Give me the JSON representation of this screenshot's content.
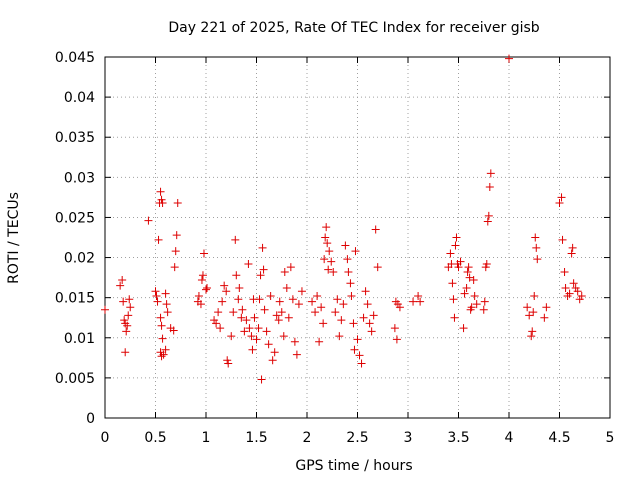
{
  "chart_data": {
    "type": "scatter",
    "title": "Day 221 of 2025, Rate Of TEC Index for receiver gisb",
    "xlabel": "GPS time / hours",
    "ylabel": "ROTI / TECUs",
    "xlim": [
      0,
      5
    ],
    "ylim": [
      0,
      0.045
    ],
    "x_ticks": [
      "0",
      "0.5",
      "1",
      "1.5",
      "2",
      "2.5",
      "3",
      "3.5",
      "4",
      "4.5",
      "5"
    ],
    "y_ticks": [
      "0",
      "0.005",
      "0.01",
      "0.015",
      "0.02",
      "0.025",
      "0.03",
      "0.035",
      "0.04",
      "0.045"
    ],
    "grid": true,
    "legend": "none",
    "marker": "plus",
    "color": "#dd0000",
    "series": [
      {
        "points": [
          [
            0.0,
            0.0135
          ],
          [
            0.15,
            0.0165
          ],
          [
            0.17,
            0.0172
          ],
          [
            0.18,
            0.0145
          ],
          [
            0.19,
            0.0122
          ],
          [
            0.2,
            0.0118
          ],
          [
            0.2,
            0.0082
          ],
          [
            0.21,
            0.0108
          ],
          [
            0.22,
            0.0115
          ],
          [
            0.23,
            0.0128
          ],
          [
            0.24,
            0.0148
          ],
          [
            0.25,
            0.0138
          ],
          [
            0.43,
            0.0246
          ],
          [
            0.5,
            0.0158
          ],
          [
            0.51,
            0.0152
          ],
          [
            0.52,
            0.0145
          ],
          [
            0.53,
            0.0222
          ],
          [
            0.54,
            0.0268
          ],
          [
            0.55,
            0.0282
          ],
          [
            0.56,
            0.0272
          ],
          [
            0.57,
            0.0268
          ],
          [
            0.55,
            0.0125
          ],
          [
            0.56,
            0.0115
          ],
          [
            0.57,
            0.0099
          ],
          [
            0.55,
            0.0082
          ],
          [
            0.56,
            0.0077
          ],
          [
            0.58,
            0.0079
          ],
          [
            0.6,
            0.0085
          ],
          [
            0.6,
            0.0155
          ],
          [
            0.61,
            0.0142
          ],
          [
            0.62,
            0.0132
          ],
          [
            0.65,
            0.0112
          ],
          [
            0.68,
            0.0109
          ],
          [
            0.69,
            0.0188
          ],
          [
            0.7,
            0.0208
          ],
          [
            0.71,
            0.0228
          ],
          [
            0.72,
            0.0268
          ],
          [
            0.92,
            0.0145
          ],
          [
            0.93,
            0.0152
          ],
          [
            0.95,
            0.0142
          ],
          [
            0.96,
            0.0172
          ],
          [
            0.97,
            0.0178
          ],
          [
            0.98,
            0.0205
          ],
          [
            1.0,
            0.016
          ],
          [
            1.01,
            0.0162
          ],
          [
            1.08,
            0.0122
          ],
          [
            1.1,
            0.0118
          ],
          [
            1.12,
            0.0132
          ],
          [
            1.14,
            0.0112
          ],
          [
            1.16,
            0.0145
          ],
          [
            1.18,
            0.0165
          ],
          [
            1.2,
            0.0158
          ],
          [
            1.21,
            0.0072
          ],
          [
            1.22,
            0.0068
          ],
          [
            1.25,
            0.0102
          ],
          [
            1.27,
            0.0132
          ],
          [
            1.29,
            0.0222
          ],
          [
            1.3,
            0.0178
          ],
          [
            1.32,
            0.0148
          ],
          [
            1.33,
            0.0162
          ],
          [
            1.35,
            0.0125
          ],
          [
            1.36,
            0.0135
          ],
          [
            1.38,
            0.0108
          ],
          [
            1.4,
            0.0122
          ],
          [
            1.42,
            0.0192
          ],
          [
            1.43,
            0.0112
          ],
          [
            1.45,
            0.0102
          ],
          [
            1.46,
            0.0085
          ],
          [
            1.47,
            0.0148
          ],
          [
            1.48,
            0.0125
          ],
          [
            1.5,
            0.0098
          ],
          [
            1.52,
            0.0112
          ],
          [
            1.53,
            0.0148
          ],
          [
            1.54,
            0.0178
          ],
          [
            1.55,
            0.0048
          ],
          [
            1.56,
            0.0212
          ],
          [
            1.57,
            0.0185
          ],
          [
            1.58,
            0.0135
          ],
          [
            1.6,
            0.0108
          ],
          [
            1.62,
            0.0092
          ],
          [
            1.64,
            0.0152
          ],
          [
            1.66,
            0.0072
          ],
          [
            1.68,
            0.0082
          ],
          [
            1.7,
            0.0128
          ],
          [
            1.72,
            0.0122
          ],
          [
            1.73,
            0.0145
          ],
          [
            1.75,
            0.0132
          ],
          [
            1.77,
            0.0102
          ],
          [
            1.78,
            0.0182
          ],
          [
            1.8,
            0.0162
          ],
          [
            1.82,
            0.0125
          ],
          [
            1.84,
            0.0188
          ],
          [
            1.86,
            0.0148
          ],
          [
            1.88,
            0.0095
          ],
          [
            1.9,
            0.0079
          ],
          [
            1.92,
            0.0142
          ],
          [
            1.95,
            0.0158
          ],
          [
            2.05,
            0.0145
          ],
          [
            2.08,
            0.0132
          ],
          [
            2.1,
            0.0152
          ],
          [
            2.12,
            0.0095
          ],
          [
            2.14,
            0.0138
          ],
          [
            2.16,
            0.0118
          ],
          [
            2.17,
            0.0198
          ],
          [
            2.18,
            0.0225
          ],
          [
            2.19,
            0.0238
          ],
          [
            2.2,
            0.0218
          ],
          [
            2.21,
            0.0185
          ],
          [
            2.22,
            0.0208
          ],
          [
            2.24,
            0.0195
          ],
          [
            2.26,
            0.0182
          ],
          [
            2.28,
            0.0132
          ],
          [
            2.3,
            0.0148
          ],
          [
            2.32,
            0.0102
          ],
          [
            2.34,
            0.0122
          ],
          [
            2.36,
            0.0142
          ],
          [
            2.38,
            0.0215
          ],
          [
            2.4,
            0.0198
          ],
          [
            2.41,
            0.0182
          ],
          [
            2.43,
            0.0168
          ],
          [
            2.44,
            0.0152
          ],
          [
            2.46,
            0.0118
          ],
          [
            2.47,
            0.0085
          ],
          [
            2.48,
            0.0208
          ],
          [
            2.5,
            0.0098
          ],
          [
            2.52,
            0.0078
          ],
          [
            2.54,
            0.0068
          ],
          [
            2.56,
            0.0125
          ],
          [
            2.58,
            0.0158
          ],
          [
            2.6,
            0.0142
          ],
          [
            2.62,
            0.0118
          ],
          [
            2.64,
            0.0108
          ],
          [
            2.66,
            0.0128
          ],
          [
            2.68,
            0.0235
          ],
          [
            2.7,
            0.0188
          ],
          [
            2.87,
            0.0112
          ],
          [
            2.88,
            0.0145
          ],
          [
            2.89,
            0.0098
          ],
          [
            2.9,
            0.0142
          ],
          [
            2.92,
            0.0138
          ],
          [
            3.05,
            0.0145
          ],
          [
            3.1,
            0.0152
          ],
          [
            3.12,
            0.0145
          ],
          [
            3.4,
            0.0188
          ],
          [
            3.42,
            0.0205
          ],
          [
            3.43,
            0.0192
          ],
          [
            3.44,
            0.0168
          ],
          [
            3.45,
            0.0148
          ],
          [
            3.46,
            0.0125
          ],
          [
            3.47,
            0.0215
          ],
          [
            3.48,
            0.0225
          ],
          [
            3.49,
            0.0192
          ],
          [
            3.5,
            0.0188
          ],
          [
            3.52,
            0.0195
          ],
          [
            3.55,
            0.0112
          ],
          [
            3.56,
            0.0155
          ],
          [
            3.58,
            0.0162
          ],
          [
            3.59,
            0.0182
          ],
          [
            3.6,
            0.0188
          ],
          [
            3.61,
            0.0175
          ],
          [
            3.62,
            0.0135
          ],
          [
            3.63,
            0.0138
          ],
          [
            3.65,
            0.0172
          ],
          [
            3.66,
            0.0152
          ],
          [
            3.68,
            0.0142
          ],
          [
            3.75,
            0.0135
          ],
          [
            3.76,
            0.0145
          ],
          [
            3.77,
            0.0188
          ],
          [
            3.78,
            0.0192
          ],
          [
            3.79,
            0.0245
          ],
          [
            3.8,
            0.0252
          ],
          [
            3.81,
            0.0288
          ],
          [
            3.82,
            0.0305
          ],
          [
            4.0,
            0.0448
          ],
          [
            4.18,
            0.0138
          ],
          [
            4.2,
            0.0128
          ],
          [
            4.22,
            0.0102
          ],
          [
            4.23,
            0.0108
          ],
          [
            4.24,
            0.0132
          ],
          [
            4.25,
            0.0152
          ],
          [
            4.26,
            0.0225
          ],
          [
            4.27,
            0.0212
          ],
          [
            4.28,
            0.0198
          ],
          [
            4.35,
            0.0125
          ],
          [
            4.37,
            0.0138
          ],
          [
            4.5,
            0.0268
          ],
          [
            4.52,
            0.0275
          ],
          [
            4.53,
            0.0222
          ],
          [
            4.55,
            0.0182
          ],
          [
            4.56,
            0.0162
          ],
          [
            4.58,
            0.0152
          ],
          [
            4.6,
            0.0155
          ],
          [
            4.62,
            0.0205
          ],
          [
            4.63,
            0.0212
          ],
          [
            4.64,
            0.0168
          ],
          [
            4.66,
            0.0162
          ],
          [
            4.68,
            0.0158
          ],
          [
            4.7,
            0.0148
          ],
          [
            4.72,
            0.0152
          ]
        ]
      }
    ]
  }
}
